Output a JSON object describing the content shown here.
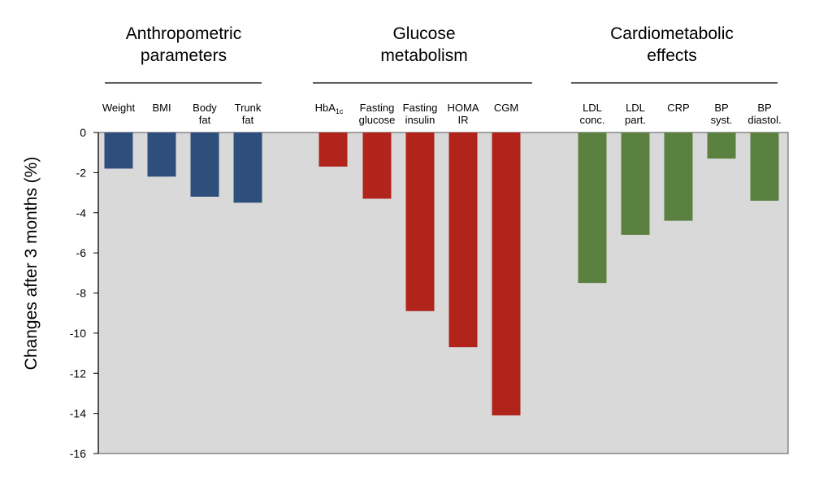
{
  "chart_data": {
    "type": "bar",
    "ylabel": "Changes after 3 months (%)",
    "ylim": [
      -16,
      0
    ],
    "yticks": [
      0,
      -2,
      -4,
      -6,
      -8,
      -10,
      -12,
      -14,
      -16
    ],
    "grid": false,
    "background_color": "#d9d9d9",
    "groups": [
      {
        "title_lines": [
          "Anthropometric",
          "parameters"
        ],
        "color": "#2e4f7c",
        "bars": [
          {
            "label_lines": [
              "Weight"
            ],
            "value": -1.8
          },
          {
            "label_lines": [
              "BMI"
            ],
            "value": -2.2
          },
          {
            "label_lines": [
              "Body",
              "fat"
            ],
            "value": -3.2
          },
          {
            "label_lines": [
              "Trunk",
              "fat"
            ],
            "value": -3.5
          }
        ]
      },
      {
        "title_lines": [
          "Glucose",
          "metabolism"
        ],
        "color": "#b0241b",
        "bars": [
          {
            "label_lines": [
              "HbA"
            ],
            "label_sub": "1c",
            "value": -1.7
          },
          {
            "label_lines": [
              "Fasting",
              "glucose"
            ],
            "value": -3.3
          },
          {
            "label_lines": [
              "Fasting",
              "insulin"
            ],
            "value": -8.9
          },
          {
            "label_lines": [
              "HOMA",
              "IR"
            ],
            "value": -10.7
          },
          {
            "label_lines": [
              "CGM"
            ],
            "value": -14.1
          }
        ]
      },
      {
        "title_lines": [
          "Cardiometabolic",
          "effects"
        ],
        "color": "#5b8140",
        "bars": [
          {
            "label_lines": [
              "LDL",
              "conc."
            ],
            "value": -7.5
          },
          {
            "label_lines": [
              "LDL",
              "part."
            ],
            "value": -5.1
          },
          {
            "label_lines": [
              "CRP"
            ],
            "value": -4.4
          },
          {
            "label_lines": [
              "BP",
              "syst."
            ],
            "value": -1.3
          },
          {
            "label_lines": [
              "BP",
              "diastol."
            ],
            "value": -3.4
          }
        ]
      }
    ]
  }
}
